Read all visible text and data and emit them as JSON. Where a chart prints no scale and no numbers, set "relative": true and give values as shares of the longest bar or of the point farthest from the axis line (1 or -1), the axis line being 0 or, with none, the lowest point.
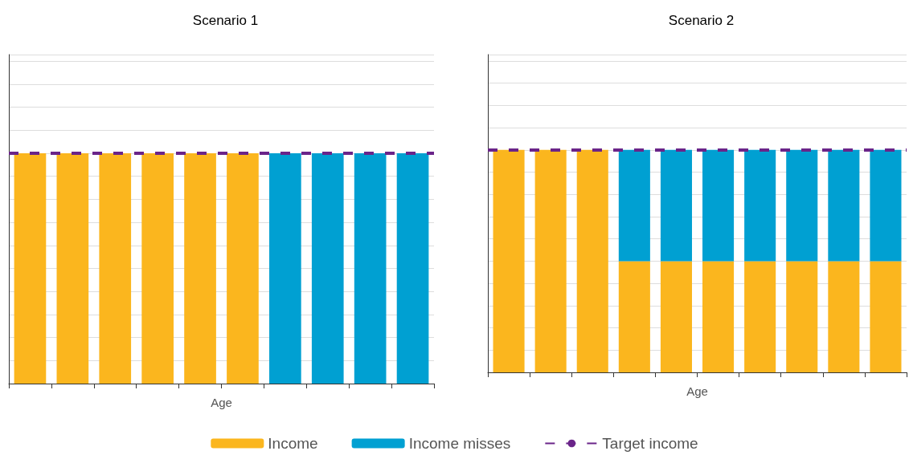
{
  "chart_data": [
    {
      "type": "bar",
      "title": "Scenario 1",
      "xlabel": "Age",
      "relative": true,
      "stacked": true,
      "grid": "y",
      "legend": "bottom",
      "categories": [
        null,
        null,
        null,
        null,
        null,
        null,
        null,
        null,
        null,
        null
      ],
      "series": [
        {
          "name": "Income",
          "color": "#fbb61e",
          "values": [
            1,
            1,
            1,
            1,
            1,
            1,
            0,
            0,
            0,
            0
          ]
        },
        {
          "name": "Income misses",
          "color": "#00a0d2",
          "values": [
            0,
            0,
            0,
            0,
            0,
            0,
            1,
            1,
            1,
            1
          ]
        }
      ],
      "ref_lines": [
        {
          "axis": "y",
          "value": 1,
          "label": "Target income",
          "color": "#6a2489",
          "line_style": "dashed"
        }
      ]
    },
    {
      "type": "bar",
      "title": "Scenario 2",
      "xlabel": "Age",
      "relative": true,
      "stacked": true,
      "grid": "y",
      "categories": [
        null,
        null,
        null,
        null,
        null,
        null,
        null,
        null,
        null,
        null
      ],
      "series": [
        {
          "color": "#fbb61e",
          "values": [
            1,
            1,
            1,
            0.5,
            0.5,
            0.5,
            0.5,
            0.5,
            0.5,
            0.5
          ]
        },
        {
          "color": "#00a0d2",
          "values": [
            0,
            0,
            0,
            0.5,
            0.5,
            0.5,
            0.5,
            0.5,
            0.5,
            0.5
          ]
        }
      ],
      "ref_lines": [
        {
          "axis": "y",
          "value": 1,
          "color": "#6a2489",
          "line_style": "dashed"
        }
      ]
    }
  ]
}
